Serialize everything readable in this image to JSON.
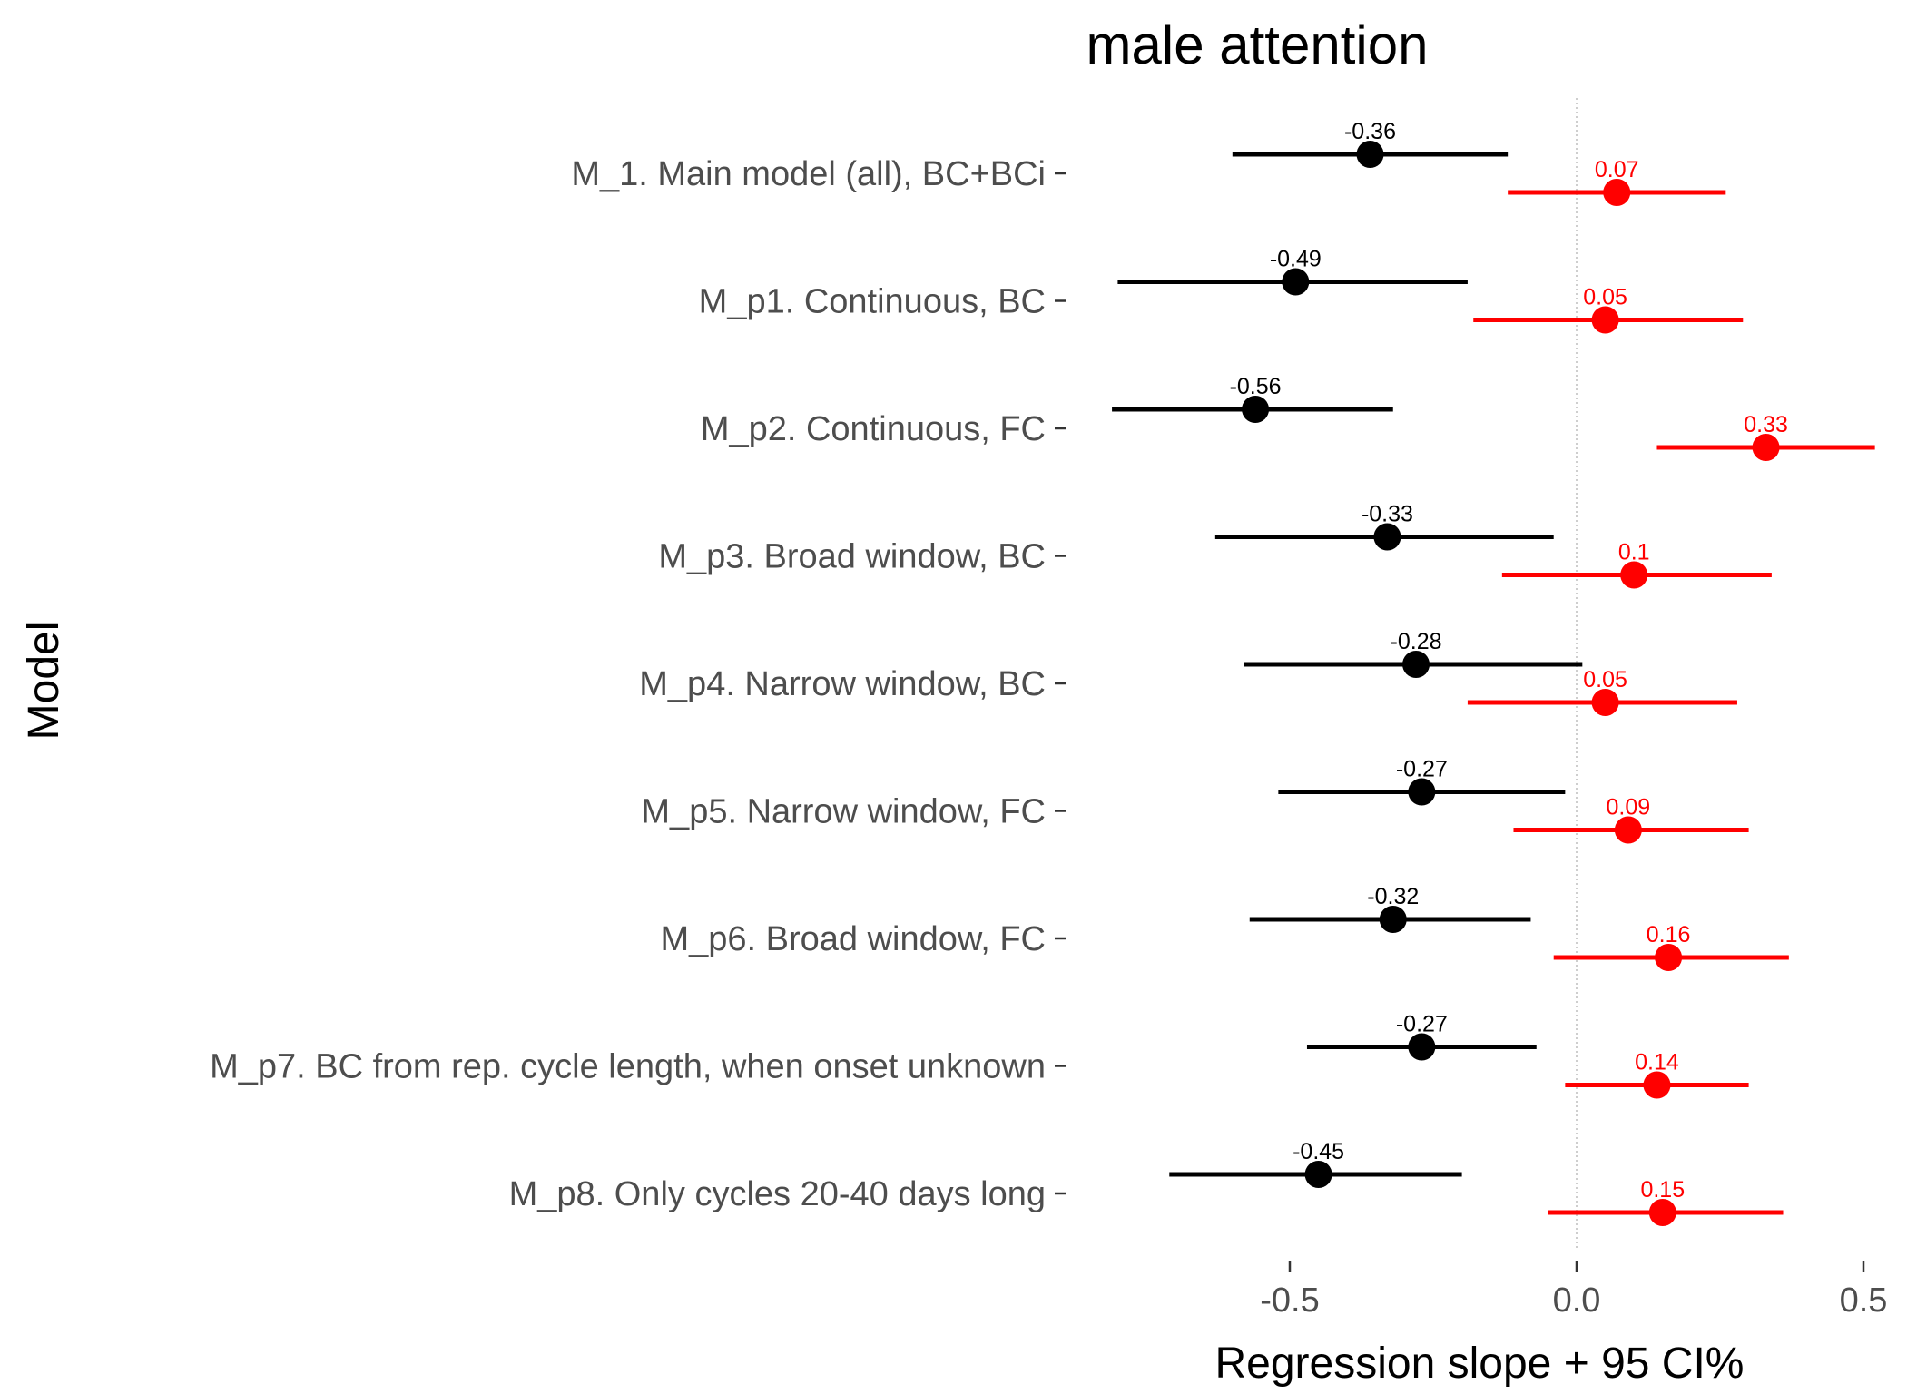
{
  "chart_data": {
    "type": "scatter",
    "title": "male attention",
    "xlabel": "Regression slope + 95 CI%",
    "ylabel": "Model",
    "xlim": [
      -0.85,
      0.53
    ],
    "xticks": [
      -0.5,
      0.0,
      0.5
    ],
    "xtick_labels": [
      "-0.5",
      "0.0",
      "0.5"
    ],
    "reference_line_x": 0,
    "grid": false,
    "categories": [
      "M_1. Main model (all), BC+BCi",
      "M_p1. Continuous, BC",
      "M_p2. Continuous, FC",
      "M_p3. Broad window, BC",
      "M_p4. Narrow window, BC",
      "M_p5. Narrow window, FC",
      "M_p6. Broad window, FC",
      "M_p7. BC from rep. cycle length, when onset unknown",
      "M_p8. Only cycles 20-40 days long"
    ],
    "series": [
      {
        "color": "#000000",
        "estimates": [
          -0.36,
          -0.49,
          -0.56,
          -0.33,
          -0.28,
          -0.27,
          -0.32,
          -0.27,
          -0.45
        ],
        "labels": [
          "-0.36",
          "-0.49",
          "-0.56",
          "-0.33",
          "-0.28",
          "-0.27",
          "-0.32",
          "-0.27",
          "-0.45"
        ],
        "lower": [
          -0.6,
          -0.8,
          -0.81,
          -0.63,
          -0.58,
          -0.52,
          -0.57,
          -0.47,
          -0.71
        ],
        "upper": [
          -0.12,
          -0.19,
          -0.32,
          -0.04,
          0.01,
          -0.02,
          -0.08,
          -0.07,
          -0.2
        ]
      },
      {
        "color": "#ff0000",
        "estimates": [
          0.07,
          0.05,
          0.33,
          0.1,
          0.05,
          0.09,
          0.16,
          0.14,
          0.15
        ],
        "labels": [
          "0.07",
          "0.05",
          "0.33",
          "0.1",
          "0.05",
          "0.09",
          "0.16",
          "0.14",
          "0.15"
        ],
        "lower": [
          -0.12,
          -0.18,
          0.14,
          -0.13,
          -0.19,
          -0.11,
          -0.04,
          -0.02,
          -0.05
        ],
        "upper": [
          0.26,
          0.29,
          0.52,
          0.34,
          0.28,
          0.3,
          0.37,
          0.3,
          0.36
        ]
      }
    ]
  }
}
